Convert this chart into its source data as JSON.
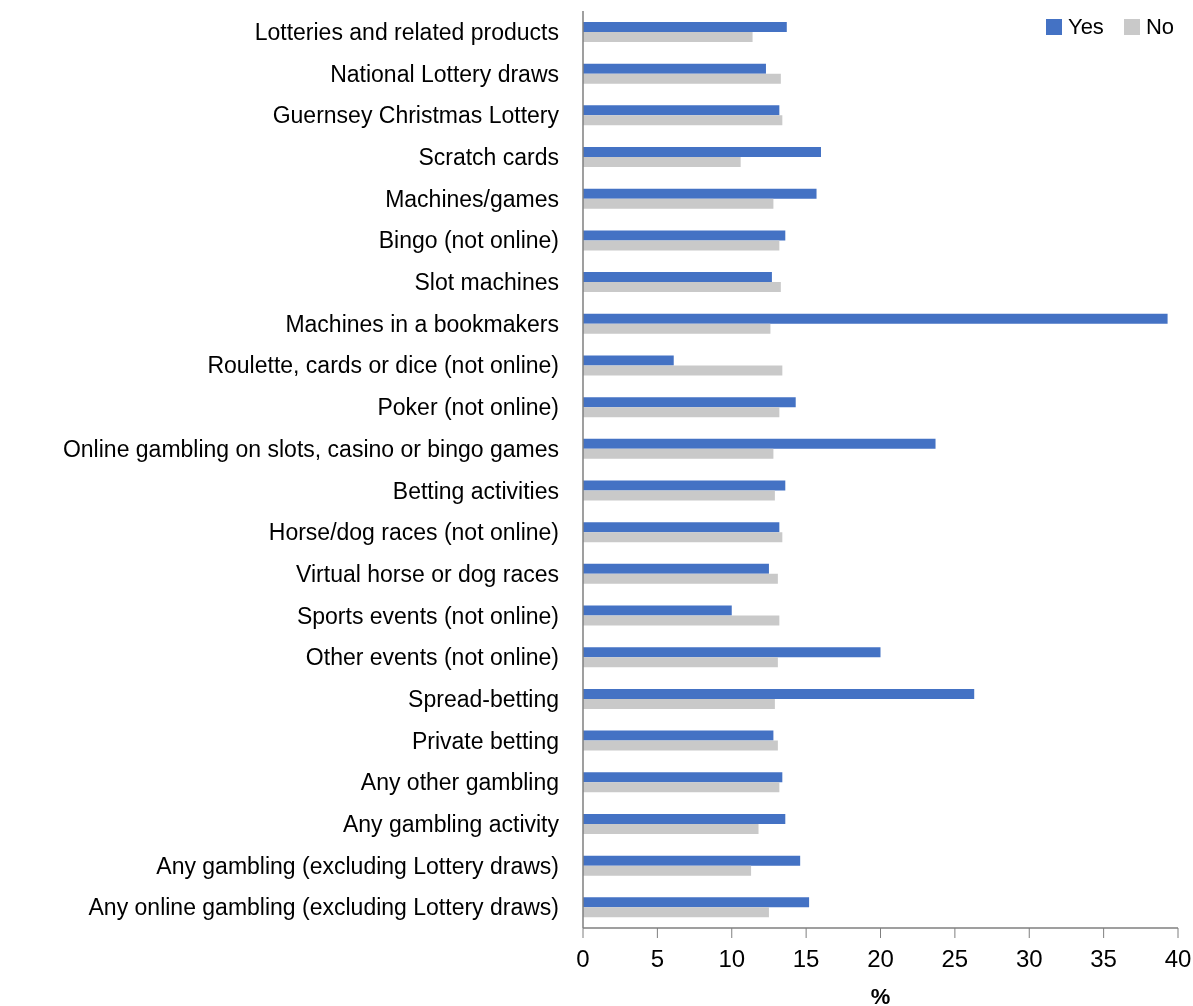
{
  "chart_data": {
    "type": "bar",
    "orientation": "horizontal",
    "xlabel": "%",
    "legend": "top right",
    "categories": [
      "Lotteries and related products",
      "National Lottery draws",
      "Guernsey Christmas Lottery",
      "Scratch cards",
      "Machines/games",
      "Bingo (not online)",
      "Slot machines",
      "Machines in a bookmakers",
      "Roulette, cards or dice (not online)",
      "Poker (not online)",
      "Online gambling on slots, casino or bingo games",
      "Betting activities",
      "Horse/dog races (not online)",
      "Virtual horse or dog races",
      "Sports events (not online)",
      "Other events (not online)",
      "Spread-betting",
      "Private betting",
      "Any other gambling",
      "Any gambling activity",
      "Any gambling (excluding Lottery draws)",
      "Any online gambling (excluding Lottery draws)"
    ],
    "series": [
      {
        "name": "Yes",
        "color": "#4472c4",
        "values": [
          13.7,
          12.3,
          13.2,
          16.0,
          15.7,
          13.6,
          12.7,
          39.3,
          6.1,
          14.3,
          23.7,
          13.6,
          13.2,
          12.5,
          10.0,
          20.0,
          26.3,
          12.8,
          13.4,
          13.6,
          14.6,
          15.2
        ]
      },
      {
        "name": "No",
        "color": "#c9c9c9",
        "values": [
          11.4,
          13.3,
          13.4,
          10.6,
          12.8,
          13.2,
          13.3,
          12.6,
          13.4,
          13.2,
          12.8,
          12.9,
          13.4,
          13.1,
          13.2,
          13.1,
          12.9,
          13.1,
          13.2,
          11.8,
          11.3,
          12.5
        ]
      }
    ],
    "xlim": [
      0,
      40
    ],
    "xticks": [
      0,
      5,
      10,
      15,
      20,
      25,
      30,
      35,
      40
    ]
  }
}
